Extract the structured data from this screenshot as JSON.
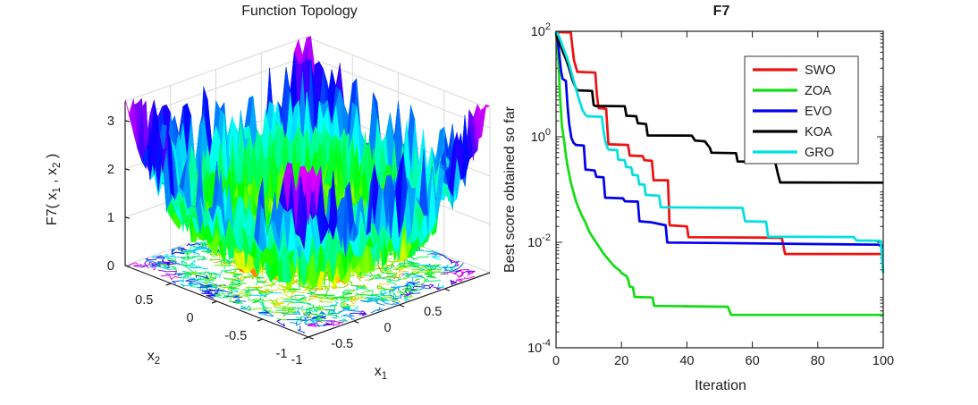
{
  "figure": {
    "background": "#ffffff",
    "axis_color": "#1c1c1c",
    "grid_color": "#d9d9d9"
  },
  "chart_data": [
    {
      "type": "surface",
      "title": "Function Topology",
      "xlabel": "x_1",
      "ylabel": "x_2",
      "zlabel": "F7( x_1 , x_2 )",
      "x_tick_labels": [
        "-1",
        "-0.5",
        "0",
        "0.5"
      ],
      "x_tick_values": [
        -1,
        -0.5,
        0,
        0.5
      ],
      "y_tick_labels": [
        "0.5",
        "0",
        "-0.5",
        "-1"
      ],
      "y_tick_values": [
        0.5,
        0,
        -0.5,
        -1
      ],
      "z_tick_labels": [
        "0",
        "1",
        "2",
        "3"
      ],
      "z_tick_values": [
        0,
        1,
        2,
        3
      ],
      "x_range": [
        -1,
        1
      ],
      "y_range": [
        -1,
        1
      ],
      "z_range": [
        0,
        3.4
      ],
      "colormap": "hsv",
      "surface_model": {
        "formula": "1.55*(x1^4 + x2^4) + spiky_noise, clamped to 3.45",
        "grid_cells": 44,
        "noise_amplitude": 1.55,
        "seed": 42,
        "contour_projection_on_base": true,
        "contour_scribbles": 760
      }
    },
    {
      "type": "line",
      "title": "F7",
      "xlabel": "Iteration",
      "ylabel": "Best score obtained so far",
      "x_ticks": [
        0,
        20,
        40,
        60,
        80,
        100
      ],
      "xlim": [
        0,
        100
      ],
      "y_scale": "log",
      "ylim_log10": [
        -4,
        2
      ],
      "y_tick_exponents": [
        2,
        0,
        -2,
        -4
      ],
      "grid": false,
      "legend": {
        "position": "northeast",
        "border": true
      },
      "series": [
        {
          "name": "SWO",
          "color": "#ee1111",
          "points": [
            [
              0,
              97
            ],
            [
              4.5,
              95
            ],
            [
              5,
              50
            ],
            [
              5.5,
              28
            ],
            [
              6.5,
              17
            ],
            [
              12,
              16.5
            ],
            [
              12.5,
              6
            ],
            [
              13,
              3.5
            ],
            [
              15.3,
              3.4
            ],
            [
              16,
              0.72
            ],
            [
              22,
              0.7
            ],
            [
              22.5,
              0.44
            ],
            [
              26.5,
              0.43
            ],
            [
              27,
              0.36
            ],
            [
              29.3,
              0.35
            ],
            [
              29.8,
              0.15
            ],
            [
              34.2,
              0.15
            ],
            [
              34.7,
              0.021
            ],
            [
              40,
              0.02
            ],
            [
              40.5,
              0.0125
            ],
            [
              69,
              0.0122
            ],
            [
              70,
              0.006
            ],
            [
              100,
              0.006
            ]
          ]
        },
        {
          "name": "ZOA",
          "color": "#11dd11",
          "points": [
            [
              0,
              95
            ],
            [
              0.7,
              30
            ],
            [
              1.2,
              6
            ],
            [
              1.8,
              1.6
            ],
            [
              2.5,
              0.8
            ],
            [
              3,
              0.45
            ],
            [
              3.5,
              0.28
            ],
            [
              4,
              0.2
            ],
            [
              4.6,
              0.13
            ],
            [
              5.2,
              0.095
            ],
            [
              6,
              0.062
            ],
            [
              7,
              0.043
            ],
            [
              8,
              0.031
            ],
            [
              9,
              0.024
            ],
            [
              10,
              0.0165
            ],
            [
              11,
              0.013
            ],
            [
              12,
              0.0105
            ],
            [
              13,
              0.0085
            ],
            [
              14,
              0.0068
            ],
            [
              15,
              0.0056
            ],
            [
              16,
              0.0047
            ],
            [
              17,
              0.004
            ],
            [
              18,
              0.0034
            ],
            [
              19.5,
              0.0029
            ],
            [
              20,
              0.0026
            ],
            [
              21.5,
              0.0023
            ],
            [
              22,
              0.002
            ],
            [
              22.5,
              0.00145
            ],
            [
              23.5,
              0.0014
            ],
            [
              24,
              0.00092
            ],
            [
              29.5,
              0.0009
            ],
            [
              30,
              0.00062
            ],
            [
              52.5,
              0.0006
            ],
            [
              53.5,
              0.00042
            ],
            [
              100,
              0.00042
            ]
          ]
        },
        {
          "name": "EVO",
          "color": "#0000ee",
          "points": [
            [
              0,
              100
            ],
            [
              0.5,
              70
            ],
            [
              1,
              35
            ],
            [
              1.5,
              18
            ],
            [
              2,
              12.5
            ],
            [
              3,
              11.5
            ],
            [
              3.5,
              4
            ],
            [
              4,
              1.8
            ],
            [
              4.7,
              0.95
            ],
            [
              5.3,
              0.78
            ],
            [
              6,
              0.7
            ],
            [
              8.5,
              0.68
            ],
            [
              9,
              0.24
            ],
            [
              11.8,
              0.23
            ],
            [
              12.3,
              0.175
            ],
            [
              14.5,
              0.17
            ],
            [
              15,
              0.07
            ],
            [
              20.5,
              0.068
            ],
            [
              21,
              0.06
            ],
            [
              25,
              0.059
            ],
            [
              25.5,
              0.025
            ],
            [
              29,
              0.024
            ],
            [
              33.5,
              0.021
            ],
            [
              34,
              0.0099
            ],
            [
              50,
              0.0097
            ],
            [
              70,
              0.0094
            ],
            [
              90,
              0.0091
            ],
            [
              98.5,
              0.009
            ],
            [
              100,
              0.0082
            ]
          ]
        },
        {
          "name": "KOA",
          "color": "#000000",
          "points": [
            [
              0,
              90
            ],
            [
              1,
              62
            ],
            [
              2,
              42
            ],
            [
              3,
              30
            ],
            [
              4,
              20
            ],
            [
              5,
              12
            ],
            [
              6,
              8.5
            ],
            [
              6.5,
              7.6
            ],
            [
              11,
              7.4
            ],
            [
              11.5,
              4
            ],
            [
              12,
              3.85
            ],
            [
              21,
              3.8
            ],
            [
              21.5,
              2.5
            ],
            [
              24.5,
              2.45
            ],
            [
              25,
              1.8
            ],
            [
              27.5,
              1.75
            ],
            [
              28,
              1.06
            ],
            [
              41.5,
              1.05
            ],
            [
              42.5,
              0.85
            ],
            [
              45.5,
              0.82
            ],
            [
              46,
              0.74
            ],
            [
              47,
              0.62
            ],
            [
              47.5,
              0.5
            ],
            [
              55,
              0.49
            ],
            [
              55.5,
              0.34
            ],
            [
              67,
              0.33
            ],
            [
              67.8,
              0.2
            ],
            [
              68.5,
              0.136
            ],
            [
              100,
              0.135
            ]
          ]
        },
        {
          "name": "GRO",
          "color": "#00e0e0",
          "points": [
            [
              0,
              100
            ],
            [
              1,
              78
            ],
            [
              2,
              52
            ],
            [
              3,
              36
            ],
            [
              4,
              24
            ],
            [
              5,
              14
            ],
            [
              6,
              8.5
            ],
            [
              7,
              5.2
            ],
            [
              8,
              3.3
            ],
            [
              9,
              2.6
            ],
            [
              9.5,
              2.45
            ],
            [
              14,
              2.4
            ],
            [
              14.5,
              1.3
            ],
            [
              15,
              0.85
            ],
            [
              15.8,
              0.6
            ],
            [
              16.2,
              0.57
            ],
            [
              18.7,
              0.56
            ],
            [
              19,
              0.37
            ],
            [
              21,
              0.36
            ],
            [
              21.4,
              0.27
            ],
            [
              23,
              0.26
            ],
            [
              23.4,
              0.19
            ],
            [
              25,
              0.185
            ],
            [
              25.4,
              0.126
            ],
            [
              27,
              0.124
            ],
            [
              27.4,
              0.079
            ],
            [
              31.5,
              0.076
            ],
            [
              32,
              0.046
            ],
            [
              57,
              0.045
            ],
            [
              57.8,
              0.025
            ],
            [
              64.2,
              0.0245
            ],
            [
              64.8,
              0.0128
            ],
            [
              91,
              0.0126
            ],
            [
              91.8,
              0.0108
            ],
            [
              99.2,
              0.0107
            ],
            [
              100,
              0.0026
            ]
          ]
        }
      ]
    }
  ]
}
